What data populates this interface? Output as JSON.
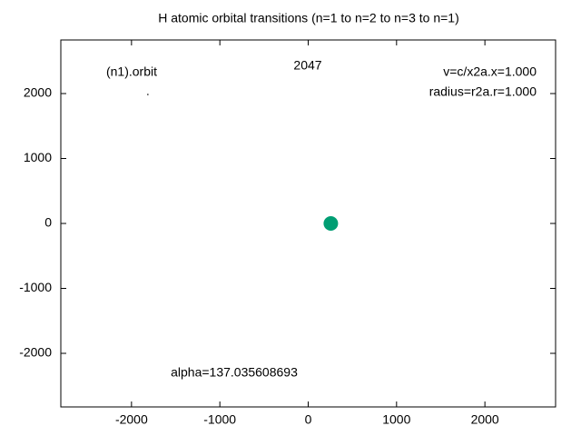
{
  "chart_data": {
    "type": "scatter",
    "title": "H atomic orbital transitions (n=1 to n=2 to n=3 to n=1)",
    "annotations": [
      "(n1).orbit",
      "2047",
      "v=c/x2a.x=1.000",
      "radius=r2a.r=1.000",
      "alpha=137.035608693"
    ],
    "series": [
      {
        "color": "#009e73",
        "x": [
          256
        ],
        "values": [
          0
        ]
      },
      {
        "color": "#000000",
        "x": [
          -1815
        ],
        "values": [
          1986
        ]
      }
    ],
    "xlim": [
      -2800,
      2800
    ],
    "xticks": [
      -2000,
      -1000,
      0,
      1000,
      2000
    ],
    "ylim": [
      -2825,
      2825
    ],
    "yticks": [
      -2000,
      -1000,
      0,
      1000,
      2000
    ]
  }
}
